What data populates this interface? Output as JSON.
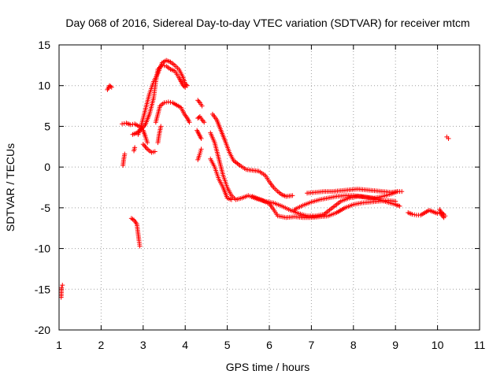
{
  "chart_data": {
    "type": "scatter",
    "title": "Day 068 of 2016, Sidereal Day-to-day VTEC variation (SDTVAR) for receiver mtcm",
    "xlabel": "GPS time / hours",
    "ylabel": "SDTVAR / TECUs",
    "xlim": [
      1,
      11
    ],
    "ylim": [
      -20,
      15
    ],
    "xticks": [
      1,
      2,
      3,
      4,
      5,
      6,
      7,
      8,
      9,
      10,
      11
    ],
    "yticks": [
      -20,
      -15,
      -10,
      -5,
      0,
      5,
      10,
      15
    ],
    "grid": true,
    "marker": "+",
    "color": "#ff0000",
    "series": [
      {
        "name": "SDTVAR",
        "segments": [
          [
            [
              1.05,
              -16.0
            ],
            [
              1.06,
              -14.8
            ],
            [
              1.08,
              -14.5
            ]
          ],
          [
            [
              2.15,
              9.5
            ],
            [
              2.2,
              10.0
            ],
            [
              2.25,
              9.8
            ]
          ],
          [
            [
              2.52,
              0.2
            ],
            [
              2.54,
              1.0
            ],
            [
              2.56,
              1.6
            ]
          ],
          [
            [
              2.5,
              5.3
            ],
            [
              2.6,
              5.4
            ],
            [
              2.7,
              5.2
            ],
            [
              2.8,
              5.3
            ],
            [
              2.9,
              5.0
            ],
            [
              3.0,
              4.5
            ],
            [
              3.05,
              3.8
            ],
            [
              3.1,
              3.0
            ]
          ],
          [
            [
              2.78,
              2.0
            ],
            [
              2.8,
              2.4
            ]
          ],
          [
            [
              2.72,
              -6.3
            ],
            [
              2.78,
              -6.5
            ],
            [
              2.85,
              -7.0
            ],
            [
              2.88,
              -8.2
            ],
            [
              2.9,
              -9.0
            ],
            [
              2.92,
              -9.7
            ]
          ],
          [
            [
              2.75,
              4.0
            ],
            [
              2.85,
              4.2
            ],
            [
              2.95,
              4.6
            ],
            [
              3.05,
              5.2
            ],
            [
              3.15,
              6.5
            ],
            [
              3.25,
              8.5
            ],
            [
              3.3,
              10.5
            ],
            [
              3.35,
              12.0
            ],
            [
              3.45,
              12.5
            ],
            [
              3.55,
              12.4
            ],
            [
              3.65,
              12.0
            ],
            [
              3.75,
              11.8
            ],
            [
              3.85,
              11.0
            ],
            [
              3.9,
              10.5
            ],
            [
              3.95,
              10.0
            ],
            [
              4.0,
              9.8
            ]
          ],
          [
            [
              2.88,
              4.0
            ],
            [
              2.95,
              5.0
            ],
            [
              3.05,
              7.0
            ],
            [
              3.15,
              9.0
            ],
            [
              3.25,
              10.5
            ],
            [
              3.35,
              11.5
            ],
            [
              3.45,
              12.8
            ],
            [
              3.55,
              13.1
            ],
            [
              3.65,
              12.9
            ],
            [
              3.75,
              12.5
            ],
            [
              3.85,
              12.0
            ],
            [
              3.95,
              11.0
            ],
            [
              4.0,
              10.2
            ],
            [
              4.05,
              10.0
            ]
          ],
          [
            [
              3.0,
              2.8
            ],
            [
              3.1,
              2.2
            ],
            [
              3.2,
              1.8
            ],
            [
              3.28,
              1.9
            ]
          ],
          [
            [
              3.3,
              5.5
            ],
            [
              3.35,
              6.5
            ],
            [
              3.4,
              7.5
            ],
            [
              3.5,
              7.9
            ],
            [
              3.6,
              8.0
            ],
            [
              3.7,
              7.9
            ],
            [
              3.8,
              7.6
            ],
            [
              3.9,
              7.3
            ],
            [
              3.98,
              6.5
            ],
            [
              4.05,
              6.0
            ],
            [
              4.1,
              5.5
            ]
          ],
          [
            [
              3.35,
              3.0
            ],
            [
              3.38,
              4.0
            ],
            [
              3.42,
              5.0
            ]
          ],
          [
            [
              4.3,
              8.2
            ],
            [
              4.35,
              7.9
            ],
            [
              4.4,
              7.5
            ]
          ],
          [
            [
              4.28,
              4.5
            ],
            [
              4.33,
              4.0
            ],
            [
              4.38,
              3.5
            ]
          ],
          [
            [
              4.3,
              0.9
            ],
            [
              4.34,
              1.5
            ],
            [
              4.38,
              2.2
            ]
          ],
          [
            [
              4.3,
              6.0
            ],
            [
              4.35,
              6.2
            ],
            [
              4.4,
              5.8
            ],
            [
              4.45,
              5.5
            ]
          ],
          [
            [
              4.6,
              4.2
            ],
            [
              4.7,
              3.0
            ],
            [
              4.8,
              1.0
            ],
            [
              4.9,
              -1.0
            ],
            [
              5.0,
              -2.5
            ],
            [
              5.1,
              -3.5
            ],
            [
              5.2,
              -4.0
            ],
            [
              5.35,
              -3.8
            ],
            [
              5.5,
              -3.5
            ],
            [
              5.7,
              -3.9
            ],
            [
              5.9,
              -4.2
            ],
            [
              6.1,
              -4.4
            ],
            [
              6.3,
              -4.8
            ],
            [
              6.5,
              -5.3
            ],
            [
              6.7,
              -5.7
            ],
            [
              6.9,
              -6.0
            ],
            [
              7.1,
              -6.0
            ],
            [
              7.3,
              -5.8
            ],
            [
              7.5,
              -5.0
            ],
            [
              7.7,
              -4.2
            ],
            [
              7.9,
              -3.8
            ],
            [
              8.1,
              -3.6
            ],
            [
              8.3,
              -3.7
            ],
            [
              8.5,
              -3.8
            ],
            [
              8.7,
              -3.6
            ],
            [
              8.9,
              -3.3
            ],
            [
              9.05,
              -3.0
            ],
            [
              9.15,
              -3.0
            ]
          ],
          [
            [
              4.65,
              6.5
            ],
            [
              4.75,
              5.8
            ],
            [
              4.85,
              4.5
            ],
            [
              4.95,
              3.2
            ],
            [
              5.05,
              1.8
            ],
            [
              5.15,
              0.8
            ],
            [
              5.3,
              0.2
            ],
            [
              5.45,
              -0.3
            ],
            [
              5.6,
              -0.4
            ],
            [
              5.75,
              -0.5
            ],
            [
              5.9,
              -1.0
            ],
            [
              6.0,
              -1.8
            ],
            [
              6.1,
              -2.5
            ],
            [
              6.2,
              -3.0
            ],
            [
              6.3,
              -3.4
            ],
            [
              6.4,
              -3.6
            ],
            [
              6.55,
              -3.5
            ]
          ],
          [
            [
              4.6,
              1.0
            ],
            [
              4.7,
              0.0
            ],
            [
              4.8,
              -1.5
            ],
            [
              4.9,
              -2.5
            ],
            [
              5.0,
              -3.8
            ],
            [
              5.1,
              -4.0
            ]
          ],
          [
            [
              5.6,
              -3.6
            ],
            [
              5.8,
              -4.0
            ],
            [
              6.0,
              -4.5
            ],
            [
              6.1,
              -5.2
            ],
            [
              6.2,
              -6.0
            ],
            [
              6.4,
              -6.2
            ],
            [
              6.6,
              -6.1
            ],
            [
              6.8,
              -6.2
            ],
            [
              7.0,
              -6.2
            ],
            [
              7.2,
              -6.1
            ],
            [
              7.4,
              -6.0
            ],
            [
              7.6,
              -5.6
            ],
            [
              7.8,
              -5.0
            ],
            [
              8.0,
              -4.6
            ],
            [
              8.2,
              -4.4
            ],
            [
              8.4,
              -4.3
            ],
            [
              8.6,
              -4.2
            ],
            [
              8.8,
              -4.1
            ],
            [
              9.0,
              -4.2
            ]
          ],
          [
            [
              6.9,
              -3.2
            ],
            [
              7.1,
              -3.1
            ],
            [
              7.3,
              -3.0
            ],
            [
              7.5,
              -3.0
            ],
            [
              7.7,
              -2.9
            ],
            [
              7.9,
              -2.8
            ],
            [
              8.1,
              -2.7
            ],
            [
              8.3,
              -2.8
            ],
            [
              8.5,
              -2.9
            ],
            [
              8.7,
              -3.0
            ],
            [
              8.9,
              -3.1
            ],
            [
              9.05,
              -3.0
            ]
          ],
          [
            [
              6.6,
              -5.2
            ],
            [
              6.8,
              -4.7
            ],
            [
              7.0,
              -4.3
            ],
            [
              7.2,
              -4.0
            ],
            [
              7.4,
              -3.8
            ],
            [
              7.6,
              -3.6
            ],
            [
              7.8,
              -3.5
            ],
            [
              8.0,
              -3.5
            ],
            [
              8.2,
              -3.6
            ],
            [
              8.4,
              -3.8
            ],
            [
              8.6,
              -4.0
            ],
            [
              8.8,
              -4.3
            ],
            [
              9.0,
              -4.6
            ],
            [
              9.1,
              -4.8
            ]
          ],
          [
            [
              9.3,
              -5.6
            ],
            [
              9.4,
              -5.8
            ],
            [
              9.5,
              -5.9
            ],
            [
              9.6,
              -5.9
            ],
            [
              9.7,
              -5.6
            ],
            [
              9.8,
              -5.3
            ],
            [
              9.9,
              -5.5
            ],
            [
              10.0,
              -5.7
            ],
            [
              10.1,
              -5.6
            ],
            [
              10.15,
              -5.8
            ]
          ],
          [
            [
              10.05,
              -5.2
            ],
            [
              10.1,
              -5.9
            ],
            [
              10.15,
              -6.2
            ],
            [
              10.18,
              -6.0
            ]
          ],
          [
            [
              10.22,
              3.7
            ],
            [
              10.26,
              3.5
            ]
          ]
        ]
      }
    ]
  }
}
